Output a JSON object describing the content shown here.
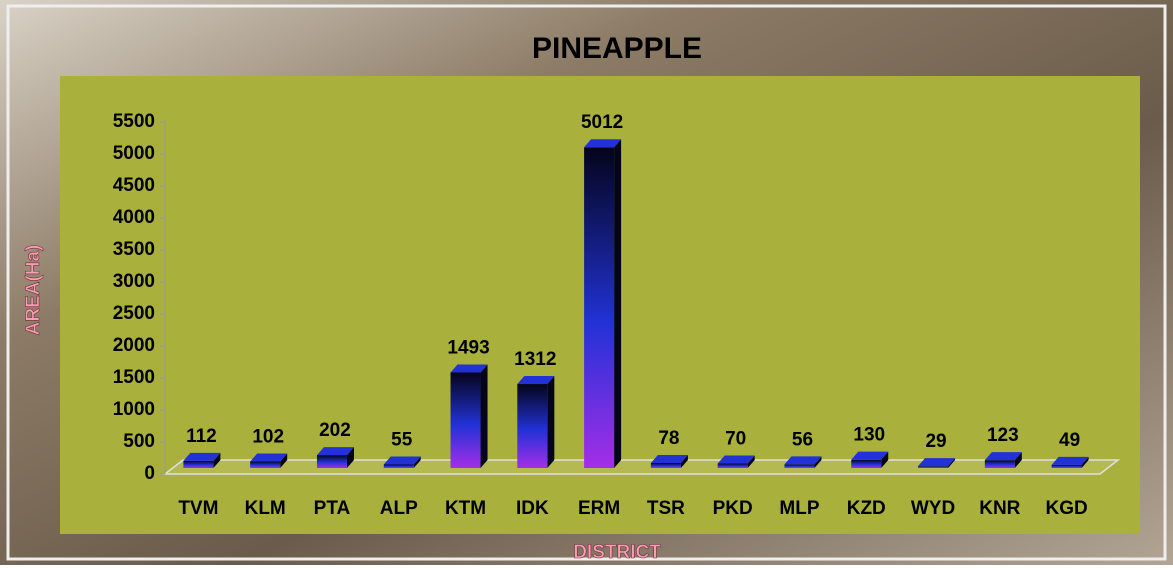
{
  "chart_data": {
    "type": "bar3d",
    "title": "PINEAPPLE",
    "y_label": "AREA(Ha)",
    "x_label": "DISTRICT",
    "categories": [
      "TVM",
      "KLM",
      "PTA",
      "ALP",
      "KTM",
      "IDK",
      "ERM",
      "TSR",
      "PKD",
      "MLP",
      "KZD",
      "WYD",
      "KNR",
      "KGD"
    ],
    "values": [
      112,
      102,
      202,
      55,
      1493,
      1312,
      5012,
      78,
      70,
      56,
      130,
      29,
      123,
      49
    ],
    "colors": [
      "#a42ee8",
      "#2232d6",
      "#04041a"
    ],
    "plot_color": "#a9b03c",
    "ylim": [
      0,
      5500
    ],
    "yticks": [
      0,
      500,
      1000,
      1500,
      2000,
      2500,
      3000,
      3500,
      4000,
      4500,
      5000,
      5500
    ]
  }
}
